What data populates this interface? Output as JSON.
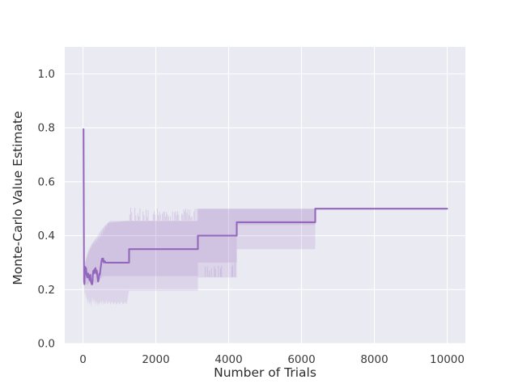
{
  "figure": {
    "background": "#ffffff",
    "plot_background": "#eaeaf2",
    "grid_color": "#ffffff",
    "text_color": "#2b2b2b",
    "tick_color": "#3a3a3a"
  },
  "chart_data": {
    "type": "line",
    "title": "",
    "xlabel": "Number of Trials",
    "ylabel": "Monte-Carlo Value Estimate",
    "xlim": [
      -500,
      10500
    ],
    "ylim": [
      0,
      1.1
    ],
    "xticks": [
      0,
      2000,
      4000,
      6000,
      8000,
      10000
    ],
    "xtick_labels": [
      "0",
      "2000",
      "4000",
      "6000",
      "8000",
      "10000"
    ],
    "yticks": [
      0.0,
      0.2,
      0.4,
      0.6,
      0.8,
      1.0
    ],
    "ytick_labels": [
      "0.0",
      "0.2",
      "0.4",
      "0.6",
      "0.8",
      "1.0"
    ],
    "grid": true,
    "legend_position": "none",
    "line_color": "#9467bd",
    "band_color": "rgba(148,103,189,0.16)",
    "stripe_color": "rgba(148,103,189,0.25)",
    "series": [
      {
        "name": "monte-carlo-value-estimate",
        "line_width": 2.1,
        "points": [
          [
            15,
            0.795
          ],
          [
            30,
            0.23
          ],
          [
            40,
            0.22
          ],
          [
            55,
            0.285
          ],
          [
            70,
            0.26
          ],
          [
            85,
            0.28
          ],
          [
            100,
            0.255
          ],
          [
            120,
            0.245
          ],
          [
            140,
            0.26
          ],
          [
            160,
            0.25
          ],
          [
            180,
            0.235
          ],
          [
            200,
            0.255
          ],
          [
            220,
            0.23
          ],
          [
            240,
            0.22
          ],
          [
            258,
            0.22
          ],
          [
            270,
            0.255
          ],
          [
            285,
            0.27
          ],
          [
            300,
            0.26
          ],
          [
            315,
            0.275
          ],
          [
            330,
            0.265
          ],
          [
            345,
            0.28
          ],
          [
            365,
            0.26
          ],
          [
            380,
            0.27
          ],
          [
            400,
            0.245
          ],
          [
            415,
            0.23
          ],
          [
            430,
            0.235
          ],
          [
            450,
            0.26
          ],
          [
            465,
            0.255
          ],
          [
            480,
            0.275
          ],
          [
            495,
            0.29
          ],
          [
            510,
            0.305
          ],
          [
            525,
            0.315
          ],
          [
            540,
            0.305
          ],
          [
            555,
            0.315
          ],
          [
            575,
            0.3
          ],
          [
            600,
            0.305
          ],
          [
            625,
            0.3
          ],
          [
            644,
            0.3
          ],
          [
            1267,
            0.3
          ],
          [
            1267,
            0.35
          ],
          [
            3155,
            0.35
          ],
          [
            3155,
            0.4
          ],
          [
            4222,
            0.4
          ],
          [
            4222,
            0.45
          ],
          [
            6378,
            0.45
          ],
          [
            6378,
            0.5
          ],
          [
            10000,
            0.5
          ]
        ]
      }
    ],
    "bands": [
      {
        "name": "outer-confidence-band",
        "upper": [
          [
            30,
            0.235
          ],
          [
            45,
            0.29
          ],
          [
            60,
            0.31
          ],
          [
            75,
            0.295
          ],
          [
            90,
            0.33
          ],
          [
            105,
            0.31
          ],
          [
            120,
            0.345
          ],
          [
            140,
            0.33
          ],
          [
            160,
            0.36
          ],
          [
            180,
            0.34
          ],
          [
            200,
            0.365
          ],
          [
            220,
            0.35
          ],
          [
            240,
            0.375
          ],
          [
            260,
            0.36
          ],
          [
            280,
            0.38
          ],
          [
            300,
            0.365
          ],
          [
            320,
            0.385
          ],
          [
            340,
            0.37
          ],
          [
            360,
            0.39
          ],
          [
            385,
            0.375
          ],
          [
            410,
            0.395
          ],
          [
            435,
            0.385
          ],
          [
            460,
            0.405
          ],
          [
            485,
            0.39
          ],
          [
            510,
            0.415
          ],
          [
            535,
            0.4
          ],
          [
            560,
            0.43
          ],
          [
            585,
            0.415
          ],
          [
            610,
            0.44
          ],
          [
            640,
            0.43
          ],
          [
            680,
            0.447
          ],
          [
            740,
            0.455
          ],
          [
            1267,
            0.455
          ],
          [
            3111,
            0.455
          ],
          [
            3111,
            0.5
          ],
          [
            6378,
            0.5
          ]
        ],
        "lower": [
          [
            30,
            0.21
          ],
          [
            45,
            0.18
          ],
          [
            60,
            0.195
          ],
          [
            75,
            0.165
          ],
          [
            90,
            0.185
          ],
          [
            105,
            0.15
          ],
          [
            120,
            0.17
          ],
          [
            140,
            0.145
          ],
          [
            160,
            0.165
          ],
          [
            180,
            0.14
          ],
          [
            200,
            0.16
          ],
          [
            220,
            0.135
          ],
          [
            240,
            0.155
          ],
          [
            260,
            0.17
          ],
          [
            280,
            0.15
          ],
          [
            300,
            0.168
          ],
          [
            320,
            0.145
          ],
          [
            340,
            0.162
          ],
          [
            360,
            0.14
          ],
          [
            385,
            0.158
          ],
          [
            410,
            0.138
          ],
          [
            435,
            0.155
          ],
          [
            460,
            0.142
          ],
          [
            485,
            0.16
          ],
          [
            510,
            0.145
          ],
          [
            535,
            0.162
          ],
          [
            560,
            0.14
          ],
          [
            585,
            0.158
          ],
          [
            610,
            0.143
          ],
          [
            640,
            0.16
          ],
          [
            680,
            0.145
          ],
          [
            720,
            0.158
          ],
          [
            760,
            0.143
          ],
          [
            800,
            0.157
          ],
          [
            840,
            0.144
          ],
          [
            880,
            0.156
          ],
          [
            920,
            0.143
          ],
          [
            960,
            0.155
          ],
          [
            1000,
            0.144
          ],
          [
            1050,
            0.157
          ],
          [
            1100,
            0.143
          ],
          [
            1150,
            0.155
          ],
          [
            1200,
            0.145
          ],
          [
            1267,
            0.196
          ],
          [
            3155,
            0.196
          ],
          [
            3155,
            0.245
          ],
          [
            4222,
            0.245
          ],
          [
            4222,
            0.35
          ],
          [
            6378,
            0.35
          ]
        ]
      },
      {
        "name": "inner-confidence-band",
        "upper": [
          [
            60,
            0.3
          ],
          [
            100,
            0.32
          ],
          [
            150,
            0.34
          ],
          [
            200,
            0.355
          ],
          [
            250,
            0.37
          ],
          [
            300,
            0.38
          ],
          [
            350,
            0.39
          ],
          [
            400,
            0.4
          ],
          [
            450,
            0.41
          ],
          [
            500,
            0.42
          ],
          [
            560,
            0.43
          ],
          [
            620,
            0.44
          ],
          [
            700,
            0.448
          ],
          [
            1267,
            0.455
          ],
          [
            3155,
            0.455
          ],
          [
            3155,
            0.5
          ],
          [
            6378,
            0.5
          ]
        ],
        "lower": [
          [
            60,
            0.225
          ],
          [
            120,
            0.215
          ],
          [
            180,
            0.228
          ],
          [
            240,
            0.215
          ],
          [
            300,
            0.23
          ],
          [
            360,
            0.22
          ],
          [
            420,
            0.235
          ],
          [
            480,
            0.24
          ],
          [
            540,
            0.248
          ],
          [
            600,
            0.25
          ],
          [
            1267,
            0.25
          ],
          [
            3155,
            0.25
          ],
          [
            3155,
            0.3
          ],
          [
            4222,
            0.3
          ],
          [
            4222,
            0.44
          ],
          [
            6378,
            0.44
          ]
        ]
      }
    ],
    "flicker_stripes": [
      {
        "t0": 1285,
        "t1": 3105,
        "step": 28,
        "base": 0.456,
        "amp_min": 0.012,
        "amp_max": 0.048,
        "p": 0.72,
        "seed": 7
      },
      {
        "t0": 3330,
        "t1": 3860,
        "step": 28,
        "base": 0.247,
        "amp_min": 0.02,
        "amp_max": 0.056,
        "p": 0.55,
        "seed": 13
      },
      {
        "t0": 4060,
        "t1": 4210,
        "step": 28,
        "base": 0.247,
        "amp_min": 0.02,
        "amp_max": 0.056,
        "p": 0.65,
        "seed": 21
      }
    ]
  }
}
